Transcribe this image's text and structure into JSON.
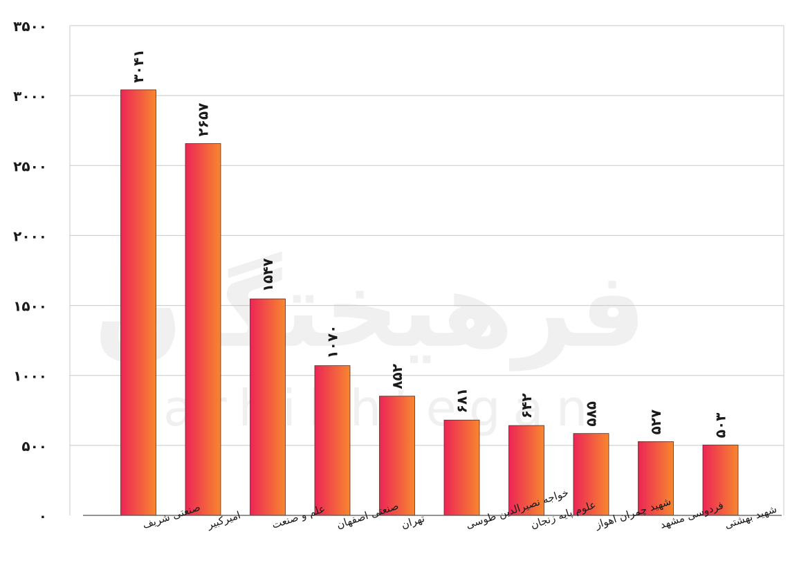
{
  "watermark": {
    "main": "فرهیختگان",
    "sub": "farhikhtegan"
  },
  "chart_data": {
    "type": "bar",
    "categories": [
      "صنعتی شریف",
      "امیرکبیر",
      "علم و صنعت",
      "صنعتی اصفهان",
      "تهران",
      "خواجه نصیرالدین طوسی",
      "علوم پایه زنجان",
      "شهید چمران اهواز",
      "فردوسی مشهد",
      "شهید بهشتی"
    ],
    "values": [
      3041,
      2657,
      1547,
      1070,
      852,
      681,
      642,
      585,
      527,
      503
    ],
    "data_labels": [
      "۳۰۴۱",
      "۲۶۵۷",
      "۱۵۴۷",
      "۱۰۷۰",
      "۸۵۲",
      "۶۸۱",
      "۶۴۲",
      "۵۸۵",
      "۵۲۷",
      "۵۰۳"
    ],
    "yticks": [
      0,
      500,
      1000,
      1500,
      2000,
      2500,
      3000,
      3500
    ],
    "ytick_labels": [
      "۰",
      "۵۰۰",
      "۱۰۰۰",
      "۱۵۰۰",
      "۲۰۰۰",
      "۲۵۰۰",
      "۳۰۰۰",
      "۳۵۰۰"
    ],
    "ylim": [
      0,
      3500
    ],
    "title": "",
    "xlabel": "",
    "ylabel": "",
    "grid": true,
    "colors": {
      "bar_start": "#ec2556",
      "bar_end": "#f7872f",
      "grid": "#c8c8c8",
      "axis": "#555555"
    }
  }
}
